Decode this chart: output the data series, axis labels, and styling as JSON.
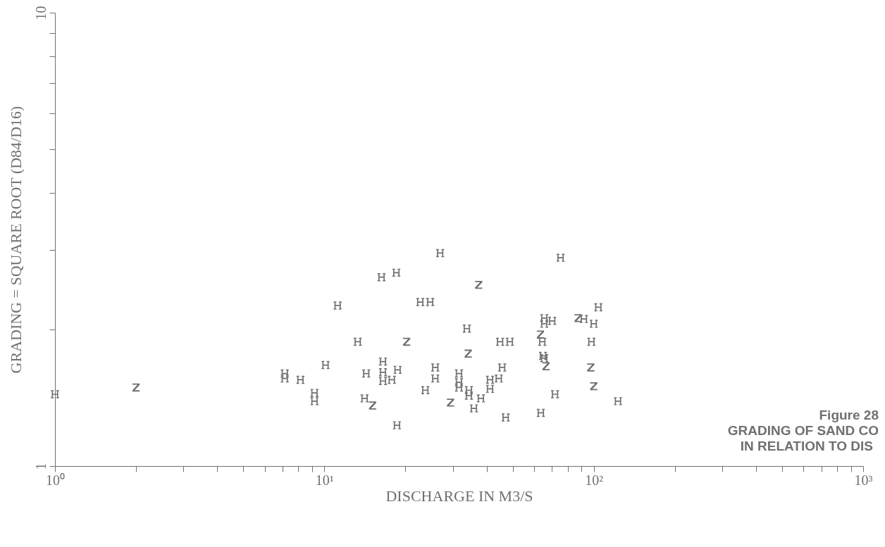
{
  "chart_data": {
    "type": "scatter",
    "xlabel": "DISCHARGE IN M3/S",
    "ylabel": "GRADING = SQUARE ROOT (D84/D16)",
    "annotations": [
      "Figure 28",
      "GRADING OF SAND CO",
      "IN RELATION TO DIS"
    ],
    "log": "xy",
    "grid": false,
    "xlim": [
      1,
      1000
    ],
    "ylim": [
      1,
      10
    ],
    "xticks": [
      {
        "value": 1,
        "label": "10⁰"
      },
      {
        "value": 2,
        "label": null
      },
      {
        "value": 3,
        "label": null
      },
      {
        "value": 4,
        "label": null
      },
      {
        "value": 5,
        "label": null
      },
      {
        "value": 6,
        "label": null
      },
      {
        "value": 7,
        "label": null
      },
      {
        "value": 8,
        "label": null
      },
      {
        "value": 9,
        "label": null
      },
      {
        "value": 10,
        "label": "10¹"
      },
      {
        "value": 20,
        "label": null
      },
      {
        "value": 30,
        "label": null
      },
      {
        "value": 40,
        "label": null
      },
      {
        "value": 50,
        "label": null
      },
      {
        "value": 60,
        "label": null
      },
      {
        "value": 70,
        "label": null
      },
      {
        "value": 80,
        "label": null
      },
      {
        "value": 90,
        "label": null
      },
      {
        "value": 100,
        "label": "10²"
      },
      {
        "value": 200,
        "label": null
      },
      {
        "value": 300,
        "label": null
      },
      {
        "value": 400,
        "label": null
      },
      {
        "value": 500,
        "label": null
      },
      {
        "value": 600,
        "label": null
      },
      {
        "value": 700,
        "label": null
      },
      {
        "value": 800,
        "label": null
      },
      {
        "value": 900,
        "label": null
      },
      {
        "value": 1000,
        "label": "10³"
      }
    ],
    "yticks": [
      1,
      {
        "value": 2,
        "label": null
      },
      {
        "value": 3,
        "label": null
      },
      {
        "value": 4,
        "label": null
      },
      {
        "value": 5,
        "label": null
      },
      {
        "value": 6,
        "label": null
      },
      {
        "value": 7,
        "label": null
      },
      {
        "value": 8,
        "label": null
      },
      {
        "value": 9,
        "label": null
      },
      10
    ],
    "series": [
      {
        "color": "#707070",
        "x": [
          1.0,
          16.3,
          18.5,
          26.9,
          75.3,
          11.2,
          22.7,
          24.7,
          104,
          33.8,
          13.3,
          44.9,
          48.8,
          65.5,
          70.1,
          65.5,
          64.4,
          65.5,
          91.9,
          100,
          98,
          123,
          71.8,
          63.6,
          47.1,
          18.6,
          7.13,
          7.13,
          8.15,
          9.19,
          9.19,
          10.1,
          14.3,
          14.1,
          16.5,
          16.5,
          16.5,
          17.8,
          18.7,
          23.7,
          25.8,
          25.8,
          31.6,
          31.6,
          31.6,
          34.4,
          34.4,
          35.9,
          38.1,
          41.2,
          41.2,
          44.4,
          45.7,
          64.8
        ],
        "values": [
          1.44,
          2.61,
          2.67,
          2.95,
          2.88,
          2.26,
          2.3,
          2.3,
          2.24,
          2.01,
          1.88,
          1.88,
          1.88,
          2.12,
          2.09,
          2.06,
          1.88,
          1.73,
          2.11,
          2.06,
          1.88,
          1.39,
          1.44,
          1.31,
          1.28,
          1.23,
          1.6,
          1.56,
          1.55,
          1.45,
          1.39,
          1.67,
          1.6,
          1.41,
          1.7,
          1.61,
          1.54,
          1.55,
          1.63,
          1.47,
          1.65,
          1.56,
          1.6,
          1.53,
          1.49,
          1.47,
          1.43,
          1.34,
          1.41,
          1.55,
          1.48,
          1.56,
          1.65,
          1.75
        ]
      },
      {
        "color": "#707070",
        "x": [
          2.0,
          20.2,
          29.4,
          34.2,
          37.4,
          15.1,
          66.5,
          63.4,
          87.5,
          97.5,
          100
        ],
        "values": [
          1.49,
          1.88,
          1.38,
          1.77,
          2.51,
          1.36,
          1.66,
          1.95,
          2.12,
          1.65,
          1.5
        ]
      }
    ]
  }
}
